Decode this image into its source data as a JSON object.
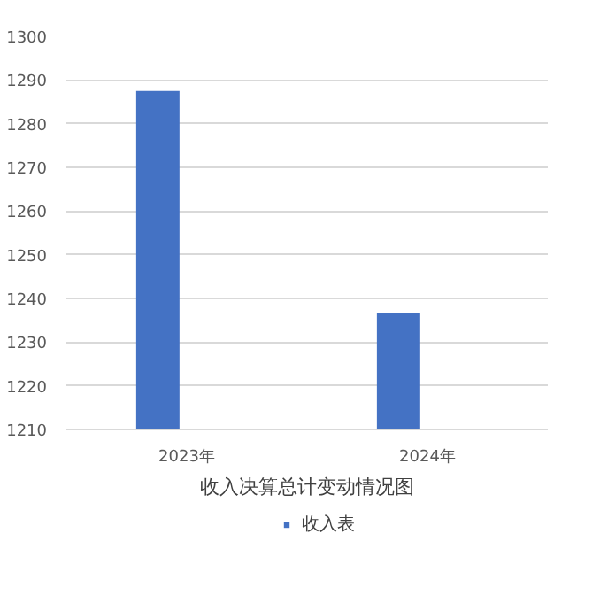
{
  "chart_data": {
    "type": "bar",
    "xlabel": "收入决算总计变动情况图",
    "categories": [
      "2023年",
      "2024年"
    ],
    "series": [
      {
        "name": "收入表",
        "color": "#4472c4",
        "values": [
          1287.5,
          1236.7
        ]
      }
    ],
    "ylim": [
      1210,
      1300
    ],
    "yticks": [
      1210,
      1220,
      1230,
      1240,
      1250,
      1260,
      1270,
      1280,
      1290,
      1300
    ],
    "grid": "y",
    "legend": "bottom"
  }
}
